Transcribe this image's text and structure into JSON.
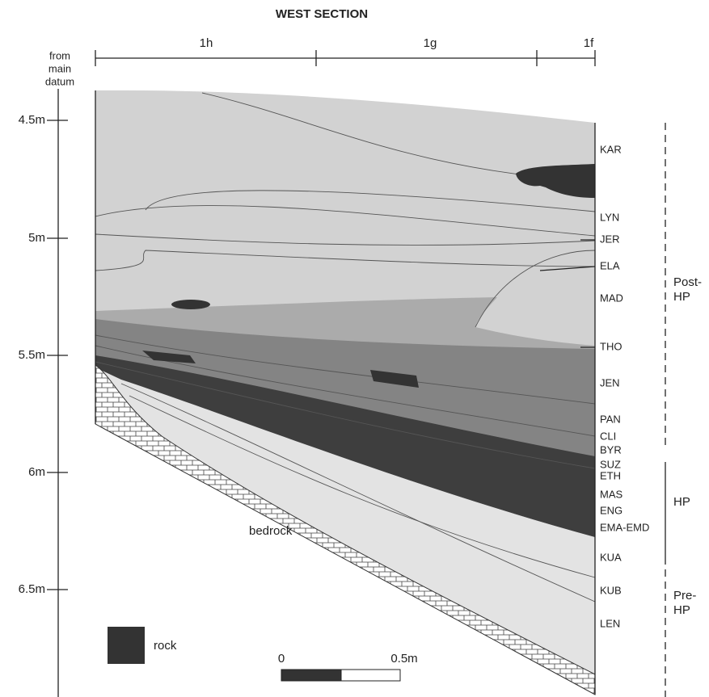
{
  "title": "WEST SECTION",
  "squares": [
    "1h",
    "1g",
    "1f"
  ],
  "datum_label": [
    "from",
    "main",
    "datum"
  ],
  "depths": [
    "4.5m",
    "5m",
    "5.5m",
    "6m",
    "6.5m"
  ],
  "layers": [
    "KAR",
    "LYN",
    "JER",
    "ELA",
    "MAD",
    "THO",
    "JEN",
    "PAN",
    "CLI",
    "BYR",
    "SUZ",
    "ETH",
    "MAS",
    "ENG",
    "EMA-EMD",
    "KUA",
    "KUB",
    "LEN"
  ],
  "phases": [
    [
      "Post-",
      "HP"
    ],
    [
      "HP"
    ],
    [
      "Pre-",
      "HP"
    ]
  ],
  "bedrock_label": "bedrock",
  "legend": {
    "rock": "rock"
  },
  "scale": {
    "start": "0",
    "end": "0.5m"
  }
}
